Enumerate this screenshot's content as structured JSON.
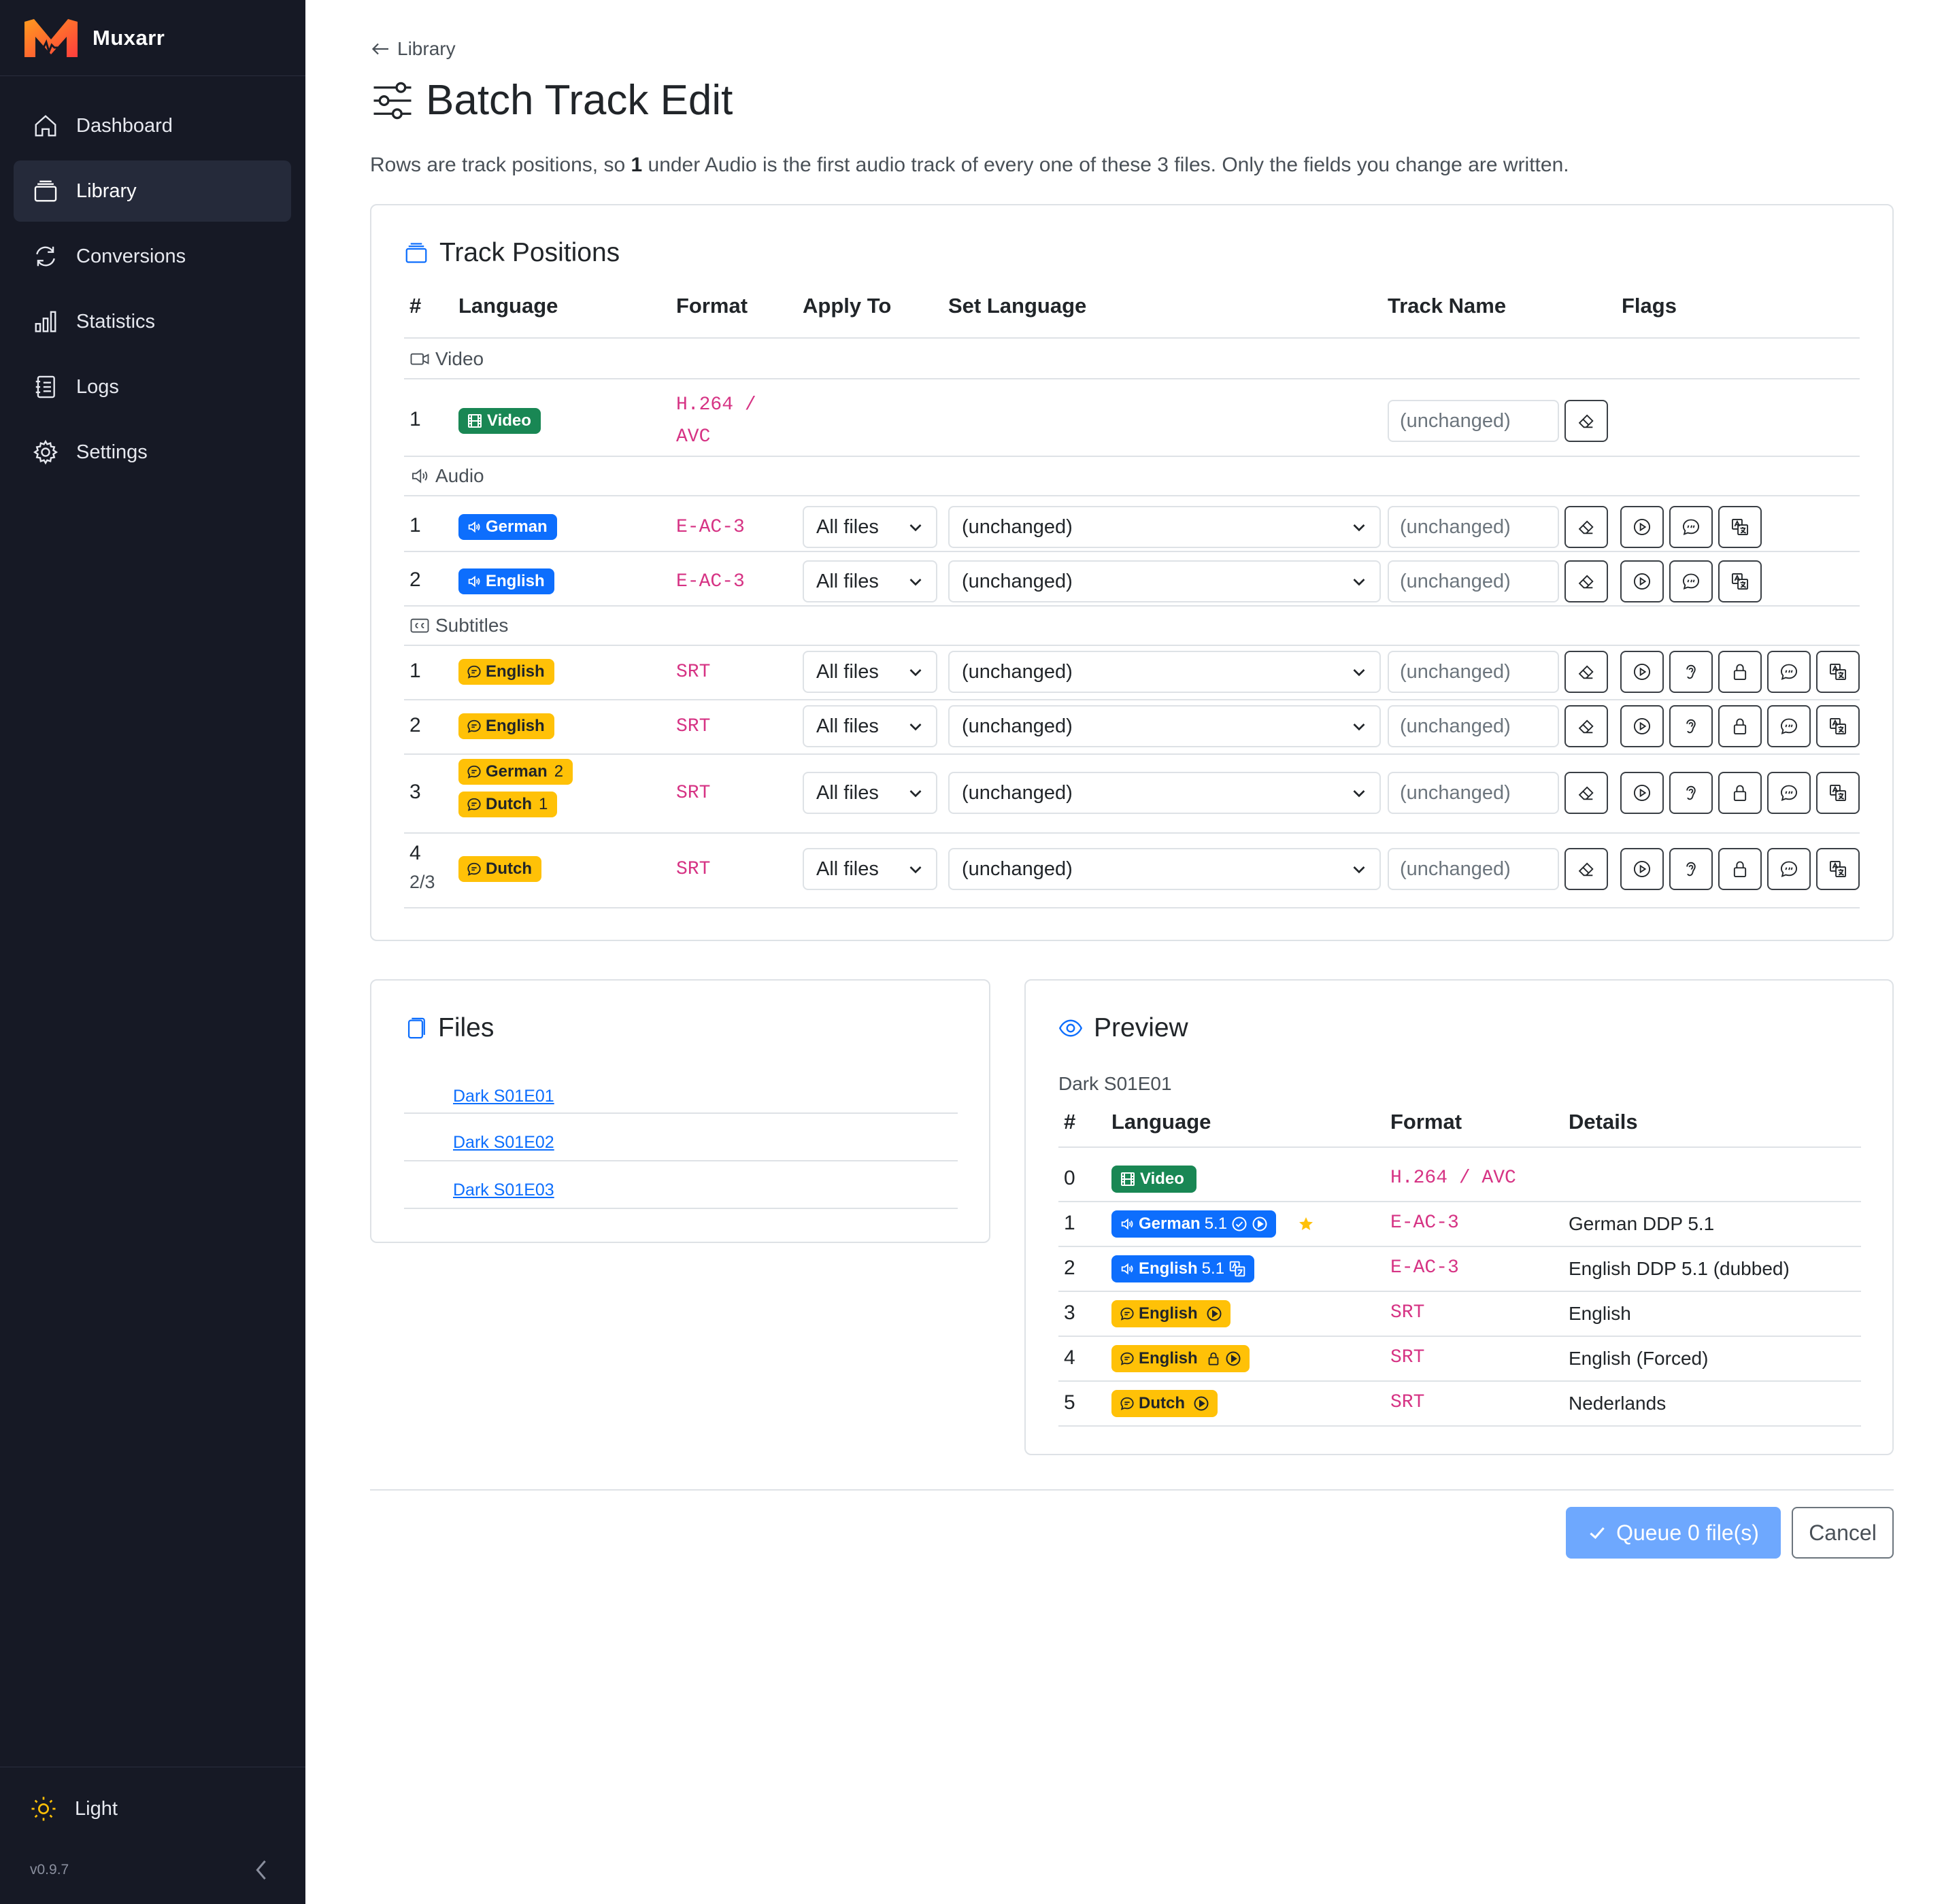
{
  "app": {
    "name": "Muxarr",
    "version": "v0.9.7",
    "theme_label": "Light"
  },
  "nav": [
    {
      "label": "Dashboard",
      "icon": "home-icon",
      "active": false
    },
    {
      "label": "Library",
      "icon": "collection-icon",
      "active": true
    },
    {
      "label": "Conversions",
      "icon": "sync-icon",
      "active": false
    },
    {
      "label": "Statistics",
      "icon": "bar-chart-icon",
      "active": false
    },
    {
      "label": "Logs",
      "icon": "journal-icon",
      "active": false
    },
    {
      "label": "Settings",
      "icon": "gear-icon",
      "active": false
    }
  ],
  "breadcrumb": "Library",
  "page_title": "Batch Track Edit",
  "intro": {
    "before": "Rows are track positions, so ",
    "bold": "1",
    "after": " under Audio is the first audio track of every one of these 3 files. Only the fields you change are written."
  },
  "track_positions": {
    "title": "Track Positions",
    "headers": {
      "num": "#",
      "language": "Language",
      "format": "Format",
      "apply_to": "Apply To",
      "set_language": "Set Language",
      "track_name": "Track Name",
      "flags": "Flags"
    },
    "sections": {
      "video": "Video",
      "audio": "Audio",
      "subtitles": "Subtitles"
    },
    "video_rows": [
      {
        "num": "1",
        "badge": "Video",
        "format_line1": "H.264 /",
        "format_line2": "AVC",
        "track_name": "(unchanged)"
      }
    ],
    "audio_rows": [
      {
        "num": "1",
        "badge": "German",
        "format": "E-AC-3",
        "apply_to": "All files",
        "set_language": "(unchanged)",
        "track_name": "(unchanged)"
      },
      {
        "num": "2",
        "badge": "English",
        "format": "E-AC-3",
        "apply_to": "All files",
        "set_language": "(unchanged)",
        "track_name": "(unchanged)"
      }
    ],
    "subtitle_rows": [
      {
        "num": "1",
        "badge": "English",
        "format": "SRT",
        "apply_to": "All files",
        "set_language": "(unchanged)",
        "track_name": "(unchanged)"
      },
      {
        "num": "2",
        "badge": "English",
        "format": "SRT",
        "apply_to": "All files",
        "set_language": "(unchanged)",
        "track_name": "(unchanged)"
      },
      {
        "num": "3",
        "badge": "German",
        "badge_count": "2",
        "badge2": "Dutch",
        "badge2_count": "1",
        "format": "SRT",
        "apply_to": "All files",
        "set_language": "(unchanged)",
        "track_name": "(unchanged)"
      },
      {
        "num": "4",
        "sub": "2/3",
        "badge": "Dutch",
        "format": "SRT",
        "apply_to": "All files",
        "set_language": "(unchanged)",
        "track_name": "(unchanged)"
      }
    ]
  },
  "files": {
    "title": "Files",
    "items": [
      "Dark S01E01",
      "Dark S01E02",
      "Dark S01E03"
    ]
  },
  "preview": {
    "title": "Preview",
    "file": "Dark S01E01",
    "headers": {
      "num": "#",
      "language": "Language",
      "format": "Format",
      "details": "Details"
    },
    "rows": [
      {
        "num": "0",
        "badge": "Video",
        "channels": "",
        "format": "H.264 / AVC",
        "details": ""
      },
      {
        "num": "1",
        "badge": "German",
        "channels": "5.1",
        "format": "E-AC-3",
        "details": "German DDP 5.1"
      },
      {
        "num": "2",
        "badge": "English",
        "channels": "5.1",
        "format": "E-AC-3",
        "details": "English DDP 5.1 (dubbed)"
      },
      {
        "num": "3",
        "badge": "English",
        "channels": "",
        "format": "SRT",
        "details": "English"
      },
      {
        "num": "4",
        "badge": "English",
        "channels": "",
        "format": "SRT",
        "details": "English (Forced)"
      },
      {
        "num": "5",
        "badge": "Dutch",
        "channels": "",
        "format": "SRT",
        "details": "Nederlands"
      }
    ]
  },
  "actions": {
    "queue_label": "Queue 0 file(s)",
    "cancel_label": "Cancel"
  },
  "colors": {
    "sidebar": "#161925",
    "primary": "#0d6efd",
    "primary_disabled": "#6ea8fe",
    "video_badge": "#198754",
    "audio_badge": "#0d6efd",
    "subtitle_badge": "#ffc107",
    "format_code": "#d63384"
  }
}
